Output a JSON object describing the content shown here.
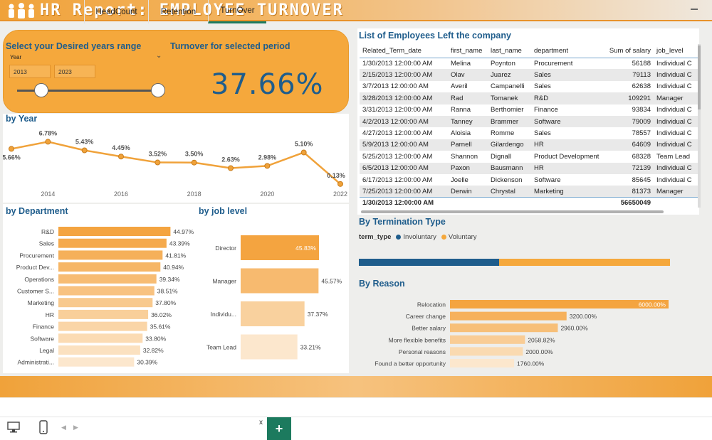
{
  "header": {
    "title": "HR Report: EMPLOYEE TURNOVER"
  },
  "slicer": {
    "title": "Select your Desired years range",
    "field": "Year",
    "from": "2013",
    "to": "2023"
  },
  "kpi": {
    "title": "Turnover for selected period",
    "value": "37.66%"
  },
  "by_year": {
    "title": "by Year"
  },
  "by_department": {
    "title": "by Department"
  },
  "by_job_level": {
    "title": "by job level"
  },
  "employees_table": {
    "title": "List of Employees Left the company",
    "columns": [
      "Related_Term_date",
      "first_name",
      "last_name",
      "department",
      "Sum of salary",
      "job_level"
    ],
    "rows": [
      [
        "1/30/2013 12:00:00 AM",
        "Melina",
        "Poynton",
        "Procurement",
        "56188",
        "Individual C"
      ],
      [
        "2/15/2013 12:00:00 AM",
        "Olav",
        "Juarez",
        "Sales",
        "79113",
        "Individual C"
      ],
      [
        "3/7/2013 12:00:00 AM",
        "Averil",
        "Campanelli",
        "Sales",
        "62638",
        "Individual C"
      ],
      [
        "3/28/2013 12:00:00 AM",
        "Rad",
        "Tomanek",
        "R&D",
        "109291",
        "Manager"
      ],
      [
        "3/31/2013 12:00:00 AM",
        "Ranna",
        "Berthomier",
        "Finance",
        "93834",
        "Individual C"
      ],
      [
        "4/2/2013 12:00:00 AM",
        "Tanney",
        "Brammer",
        "Software",
        "79009",
        "Individual C"
      ],
      [
        "4/27/2013 12:00:00 AM",
        "Aloisia",
        "Romme",
        "Sales",
        "78557",
        "Individual C"
      ],
      [
        "5/9/2013 12:00:00 AM",
        "Parnell",
        "Gilardengo",
        "HR",
        "64609",
        "Individual C"
      ],
      [
        "5/25/2013 12:00:00 AM",
        "Shannon",
        "Dignall",
        "Product Development",
        "68328",
        "Team Lead"
      ],
      [
        "6/5/2013 12:00:00 AM",
        "Paxon",
        "Bausmann",
        "HR",
        "72139",
        "Individual C"
      ],
      [
        "6/17/2013 12:00:00 AM",
        "Joelle",
        "Dickenson",
        "Software",
        "85645",
        "Individual C"
      ],
      [
        "7/25/2013 12:00:00 AM",
        "Derwin",
        "Chrystal",
        "Marketing",
        "81373",
        "Manager"
      ]
    ],
    "total": {
      "date": "1/30/2013 12:00:00 AM",
      "salary": "56650049"
    }
  },
  "termination": {
    "title": "By Termination Type",
    "legend_label": "term_type",
    "items": [
      {
        "name": "Involuntary",
        "color": "#1f5d8c",
        "share": 0.45
      },
      {
        "name": "Voluntary",
        "color": "#f5a83c",
        "share": 0.55
      }
    ]
  },
  "by_reason": {
    "title": "By Reason"
  },
  "tabs": {
    "headcount": "HeadCount",
    "retention": "Retention",
    "turnover": "TurnOver",
    "close": "x",
    "add": "+"
  },
  "colors": {
    "accent": "#f5a83c",
    "title_blue": "#1f5d8c",
    "tab_green": "#1c7a5e"
  },
  "chart_data": [
    {
      "type": "line",
      "x": [
        2013,
        2014,
        2015,
        2016,
        2017,
        2018,
        2019,
        2020,
        2021,
        2022
      ],
      "series": [
        {
          "values": [
            5.66,
            6.78,
            5.43,
            4.45,
            3.52,
            3.5,
            2.63,
            2.98,
            5.1,
            0.13
          ]
        }
      ],
      "labels": [
        "5.66%",
        "6.78%",
        "5.43%",
        "4.45%",
        "3.52%",
        "3.50%",
        "2.63%",
        "2.98%",
        "5.10%",
        "0.13%"
      ],
      "x_ticks": [
        "2014",
        "2016",
        "2018",
        "2020",
        "2022"
      ],
      "ylim": [
        0,
        7.5
      ]
    },
    {
      "type": "bar",
      "orientation": "horizontal",
      "categories": [
        "R&D",
        "Sales",
        "Procurement",
        "Product Dev...",
        "Operations",
        "Customer S...",
        "Marketing",
        "HR",
        "Finance",
        "Software",
        "Legal",
        "Administrati..."
      ],
      "values": [
        44.97,
        43.39,
        41.81,
        40.94,
        39.34,
        38.51,
        37.8,
        36.02,
        35.61,
        33.8,
        32.82,
        30.39
      ],
      "labels": [
        "44.97%",
        "43.39%",
        "41.81%",
        "40.94%",
        "39.34%",
        "38.51%",
        "37.80%",
        "36.02%",
        "35.61%",
        "33.80%",
        "32.82%",
        "30.39%"
      ],
      "xlim": [
        0,
        50
      ]
    },
    {
      "type": "bar",
      "orientation": "horizontal",
      "categories": [
        "Director",
        "Manager",
        "Individu...",
        "Team Lead"
      ],
      "values": [
        45.83,
        45.57,
        37.37,
        33.21
      ],
      "labels": [
        "45.83%",
        "45.57%",
        "37.37%",
        "33.21%"
      ],
      "xlim": [
        0,
        50
      ]
    },
    {
      "type": "bar",
      "orientation": "horizontal",
      "categories": [
        "Relocation",
        "Career change",
        "Better salary",
        "More flexible benefits",
        "Personal reasons",
        "Found a better opportunity"
      ],
      "values": [
        6000,
        3200,
        2960,
        2058.82,
        2000,
        1760
      ],
      "labels": [
        "6000.00%",
        "3200.00%",
        "2960.00%",
        "2058.82%",
        "2000.00%",
        "1760.00%"
      ],
      "xlim": [
        0,
        6000
      ]
    }
  ]
}
